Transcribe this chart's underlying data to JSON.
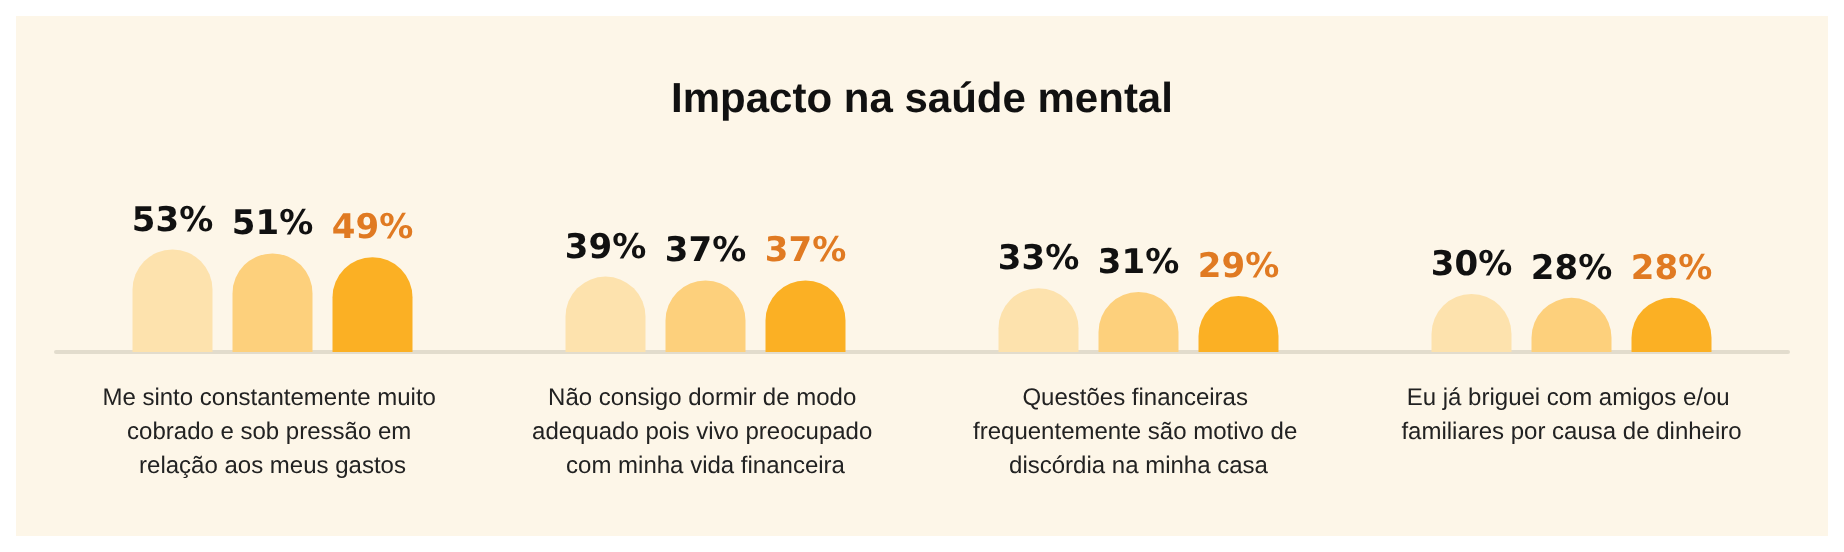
{
  "chart_data": {
    "type": "bar",
    "title": "Impacto na saúde mental",
    "categories": [
      "Me sinto constantemente muito cobrado e sob pressão em relação aos meus gastos",
      "Não consigo dormir de modo adequado pois vivo preocupado com minha vida financeira",
      "Questões financeiras frequentemente são motivo de discórdia na minha casa",
      "Eu já briguei com amigos e/ou familiares por causa de dinheiro"
    ],
    "series": [
      {
        "color": "#fde2ad",
        "values": [
          53,
          39,
          33,
          30
        ],
        "value_labels": [
          "53%",
          "39%",
          "33%",
          "30%"
        ]
      },
      {
        "color": "#fdd07c",
        "values": [
          51,
          37,
          31,
          28
        ],
        "value_labels": [
          "51%",
          "37%",
          "31%",
          "28%"
        ]
      },
      {
        "color": "#fbb024",
        "values": [
          49,
          37,
          29,
          28
        ],
        "value_labels": [
          "49%",
          "37%",
          "29%",
          "28%"
        ]
      }
    ]
  }
}
